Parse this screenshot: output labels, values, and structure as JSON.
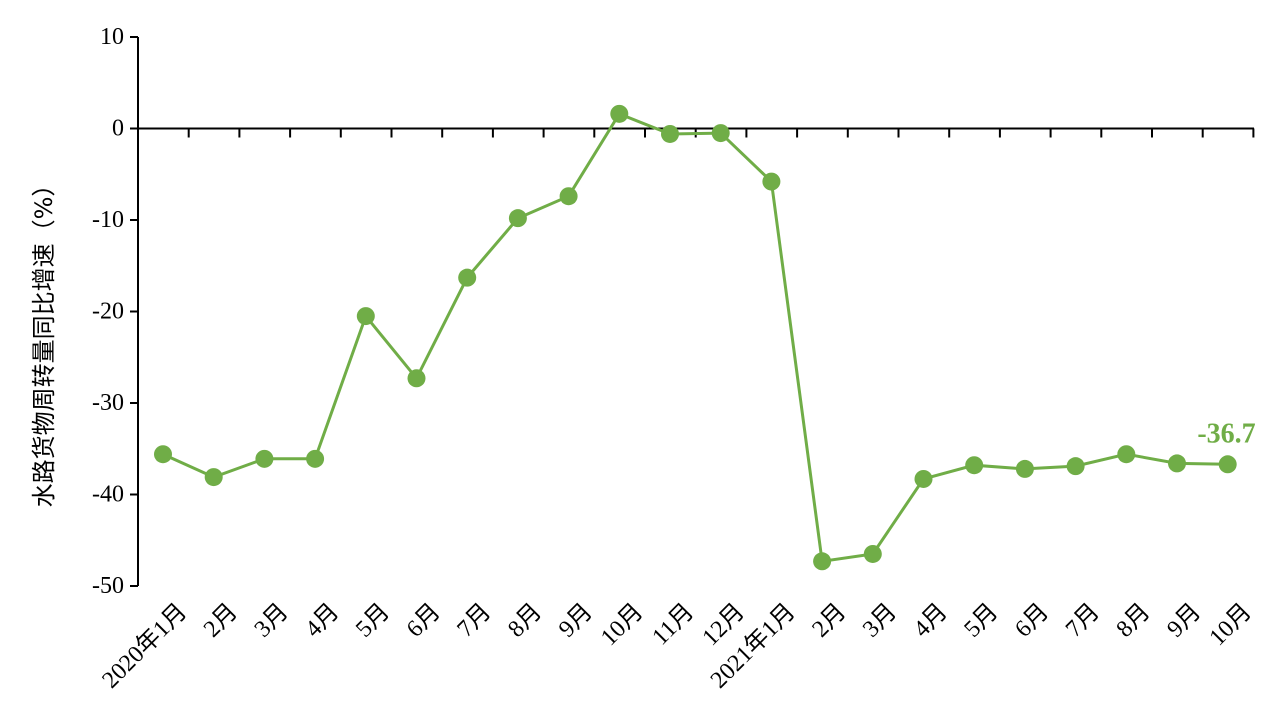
{
  "chart_data": {
    "type": "line",
    "categories": [
      "2020年1月",
      "2月",
      "3月",
      "4月",
      "5月",
      "6月",
      "7月",
      "8月",
      "9月",
      "10月",
      "11月",
      "12月",
      "2021年1月",
      "2月",
      "3月",
      "4月",
      "5月",
      "6月",
      "7月",
      "8月",
      "9月",
      "10月"
    ],
    "series": [
      {
        "values": [
          -35.6,
          -38.1,
          -36.1,
          -36.1,
          -20.5,
          -27.3,
          -16.3,
          -9.8,
          -7.4,
          1.6,
          -0.6,
          -0.5,
          -5.8,
          -47.3,
          -46.5,
          -38.3,
          -36.8,
          -37.2,
          -36.9,
          -35.6,
          -36.6,
          -36.7
        ],
        "color": "#70ad47"
      }
    ],
    "ylabel": "水路货物周转量同比增速（%）",
    "ylim": [
      -50,
      10
    ],
    "yticks": [
      "10",
      "0",
      "-10",
      "-20",
      "-30",
      "-40",
      "-50"
    ],
    "ytick_values": [
      10,
      0,
      -10,
      -20,
      -30,
      -40,
      -50
    ],
    "last_point_label": "-36.7",
    "grid": false,
    "legend": "none"
  }
}
